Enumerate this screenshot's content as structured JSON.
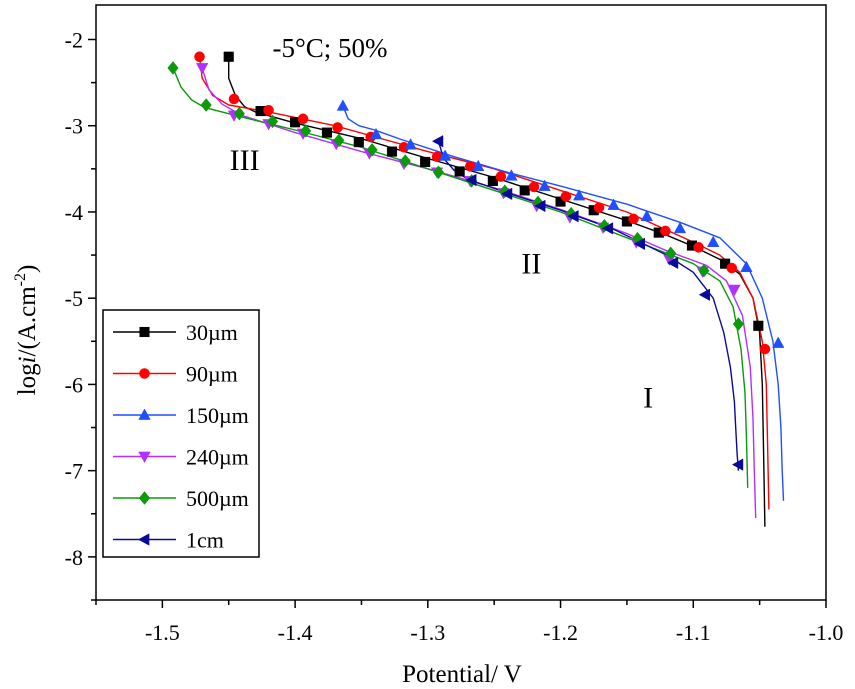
{
  "chart_data": {
    "type": "line",
    "title": "-5°C; 50%",
    "xlabel": "Potential/ V",
    "ylabel": {
      "prefix": "log",
      "italic": "i",
      "mid": "/(A.cm",
      "sup": "-2",
      "suffix": ")"
    },
    "xlim": [
      -1.55,
      -1.0
    ],
    "ylim": [
      -8.5,
      -1.6
    ],
    "xticks": [
      -1.5,
      -1.4,
      -1.3,
      -1.2,
      -1.1,
      -1.0
    ],
    "xtick_labels": [
      "-1.5",
      "-1.4",
      "-1.3",
      "-1.2",
      "-1.1",
      "-1.0"
    ],
    "yticks": [
      -2,
      -3,
      -4,
      -5,
      -6,
      -7,
      -8
    ],
    "ytick_labels": [
      "-2",
      "-3",
      "-4",
      "-5",
      "-6",
      "-7",
      "-8"
    ],
    "grid": false,
    "legend_position": "bottom-left",
    "annotations": [
      {
        "text": "III",
        "x": -1.438,
        "y": -3.4
      },
      {
        "text": "II",
        "x": -1.222,
        "y": -4.6
      },
      {
        "text": "I",
        "x": -1.134,
        "y": -6.15
      }
    ],
    "series": [
      {
        "name": "30µm",
        "color": "#000000",
        "marker": "square",
        "line_x": [
          -1.45,
          -1.45,
          -1.445,
          -1.438,
          -1.43,
          -1.4,
          -1.35,
          -1.3,
          -1.25,
          -1.2,
          -1.15,
          -1.12,
          -1.1,
          -1.08,
          -1.065,
          -1.055,
          -1.05,
          -1.048,
          -1.047,
          -1.046
        ],
        "line_y": [
          -2.2,
          -2.45,
          -2.65,
          -2.78,
          -2.84,
          -2.97,
          -3.15,
          -3.38,
          -3.6,
          -3.85,
          -4.1,
          -4.27,
          -4.4,
          -4.55,
          -4.72,
          -5.0,
          -5.4,
          -6.0,
          -6.8,
          -7.65
        ],
        "marker_x": [
          -1.45,
          -1.426,
          -1.4,
          -1.376,
          -1.352,
          -1.327,
          -1.302,
          -1.276,
          -1.251,
          -1.227,
          -1.2,
          -1.175,
          -1.15,
          -1.126,
          -1.101,
          -1.076,
          -1.051
        ],
        "marker_y": [
          -2.2,
          -2.83,
          -2.96,
          -3.08,
          -3.19,
          -3.3,
          -3.42,
          -3.53,
          -3.64,
          -3.75,
          -3.88,
          -3.98,
          -4.11,
          -4.24,
          -4.39,
          -4.6,
          -5.32
        ]
      },
      {
        "name": "90µm",
        "color": "#ff0000",
        "marker": "circle",
        "line_x": [
          -1.472,
          -1.47,
          -1.462,
          -1.45,
          -1.42,
          -1.37,
          -1.3,
          -1.25,
          -1.2,
          -1.15,
          -1.1,
          -1.08,
          -1.065,
          -1.055,
          -1.048,
          -1.045,
          -1.044,
          -1.043
        ],
        "line_y": [
          -2.2,
          -2.45,
          -2.65,
          -2.76,
          -2.84,
          -3.0,
          -3.3,
          -3.5,
          -3.75,
          -4.0,
          -4.35,
          -4.5,
          -4.7,
          -5.0,
          -5.5,
          -6.0,
          -6.7,
          -7.45
        ],
        "marker_x": [
          -1.472,
          -1.446,
          -1.42,
          -1.394,
          -1.368,
          -1.343,
          -1.318,
          -1.293,
          -1.268,
          -1.245,
          -1.22,
          -1.196,
          -1.171,
          -1.145,
          -1.121,
          -1.096,
          -1.071,
          -1.046
        ],
        "marker_y": [
          -2.2,
          -2.69,
          -2.82,
          -2.92,
          -3.02,
          -3.13,
          -3.25,
          -3.36,
          -3.47,
          -3.59,
          -3.71,
          -3.82,
          -3.95,
          -4.08,
          -4.22,
          -4.41,
          -4.65,
          -5.59
        ]
      },
      {
        "name": "150µm",
        "color": "#1f4fff",
        "marker": "triangle-up",
        "line_x": [
          -1.364,
          -1.36,
          -1.352,
          -1.34,
          -1.32,
          -1.28,
          -1.24,
          -1.2,
          -1.15,
          -1.11,
          -1.08,
          -1.06,
          -1.048,
          -1.04,
          -1.036,
          -1.034,
          -1.033,
          -1.032
        ],
        "line_y": [
          -2.77,
          -2.92,
          -3.0,
          -3.05,
          -3.16,
          -3.36,
          -3.54,
          -3.7,
          -3.91,
          -4.12,
          -4.3,
          -4.6,
          -5.0,
          -5.5,
          -6.0,
          -6.5,
          -7.0,
          -7.35
        ],
        "marker_x": [
          -1.364,
          -1.339,
          -1.313,
          -1.287,
          -1.262,
          -1.237,
          -1.212,
          -1.186,
          -1.16,
          -1.135,
          -1.11,
          -1.085,
          -1.06,
          -1.036
        ],
        "marker_y": [
          -2.77,
          -3.1,
          -3.22,
          -3.35,
          -3.47,
          -3.58,
          -3.7,
          -3.81,
          -3.92,
          -4.05,
          -4.19,
          -4.35,
          -4.64,
          -5.52
        ]
      },
      {
        "name": "240µm",
        "color": "#b030ff",
        "marker": "triangle-down",
        "line_x": [
          -1.47,
          -1.465,
          -1.455,
          -1.44,
          -1.4,
          -1.35,
          -1.3,
          -1.25,
          -1.2,
          -1.15,
          -1.12,
          -1.09,
          -1.075,
          -1.063,
          -1.057,
          -1.055,
          -1.054,
          -1.053
        ],
        "line_y": [
          -2.33,
          -2.58,
          -2.75,
          -2.88,
          -3.08,
          -3.3,
          -3.5,
          -3.72,
          -3.97,
          -4.25,
          -4.45,
          -4.62,
          -4.8,
          -5.2,
          -5.8,
          -6.4,
          -7.0,
          -7.55
        ],
        "marker_x": [
          -1.47,
          -1.446,
          -1.42,
          -1.394,
          -1.369,
          -1.344,
          -1.318,
          -1.293,
          -1.268,
          -1.243,
          -1.218,
          -1.193,
          -1.168,
          -1.143,
          -1.118,
          -1.093,
          -1.069
        ],
        "marker_y": [
          -2.33,
          -2.88,
          -2.98,
          -3.09,
          -3.21,
          -3.32,
          -3.44,
          -3.54,
          -3.64,
          -3.78,
          -3.93,
          -4.06,
          -4.18,
          -4.35,
          -4.55,
          -4.69,
          -4.9
        ]
      },
      {
        "name": "500µm",
        "color": "#0a9a0a",
        "marker": "diamond",
        "line_x": [
          -1.492,
          -1.486,
          -1.478,
          -1.468,
          -1.44,
          -1.4,
          -1.35,
          -1.3,
          -1.25,
          -1.2,
          -1.15,
          -1.1,
          -1.08,
          -1.07,
          -1.064,
          -1.061,
          -1.06,
          -1.059
        ],
        "line_y": [
          -2.33,
          -2.55,
          -2.7,
          -2.79,
          -2.9,
          -3.05,
          -3.25,
          -3.5,
          -3.75,
          -4.0,
          -4.3,
          -4.6,
          -4.8,
          -5.1,
          -5.6,
          -6.1,
          -6.6,
          -7.2
        ],
        "marker_x": [
          -1.492,
          -1.467,
          -1.442,
          -1.417,
          -1.392,
          -1.367,
          -1.342,
          -1.317,
          -1.292,
          -1.267,
          -1.242,
          -1.217,
          -1.192,
          -1.167,
          -1.142,
          -1.117,
          -1.092,
          -1.066
        ],
        "marker_y": [
          -2.33,
          -2.76,
          -2.86,
          -2.95,
          -3.06,
          -3.17,
          -3.28,
          -3.41,
          -3.54,
          -3.64,
          -3.76,
          -3.89,
          -4.02,
          -4.16,
          -4.31,
          -4.48,
          -4.68,
          -5.3
        ]
      },
      {
        "name": "1cm",
        "color": "#0a0a9a",
        "marker": "triangle-left",
        "line_x": [
          -1.292,
          -1.288,
          -1.28,
          -1.27,
          -1.24,
          -1.2,
          -1.16,
          -1.12,
          -1.1,
          -1.085,
          -1.077,
          -1.072,
          -1.069,
          -1.068,
          -1.067,
          -1.066
        ],
        "line_y": [
          -3.18,
          -3.38,
          -3.52,
          -3.62,
          -3.78,
          -3.98,
          -4.2,
          -4.5,
          -4.7,
          -5.0,
          -5.4,
          -5.8,
          -6.2,
          -6.5,
          -6.8,
          -7.0
        ],
        "marker_x": [
          -1.292,
          -1.267,
          -1.24,
          -1.215,
          -1.19,
          -1.164,
          -1.14,
          -1.115,
          -1.091,
          -1.066
        ],
        "marker_y": [
          -3.18,
          -3.63,
          -3.79,
          -3.93,
          -4.05,
          -4.19,
          -4.37,
          -4.59,
          -4.96,
          -6.93
        ]
      }
    ]
  }
}
